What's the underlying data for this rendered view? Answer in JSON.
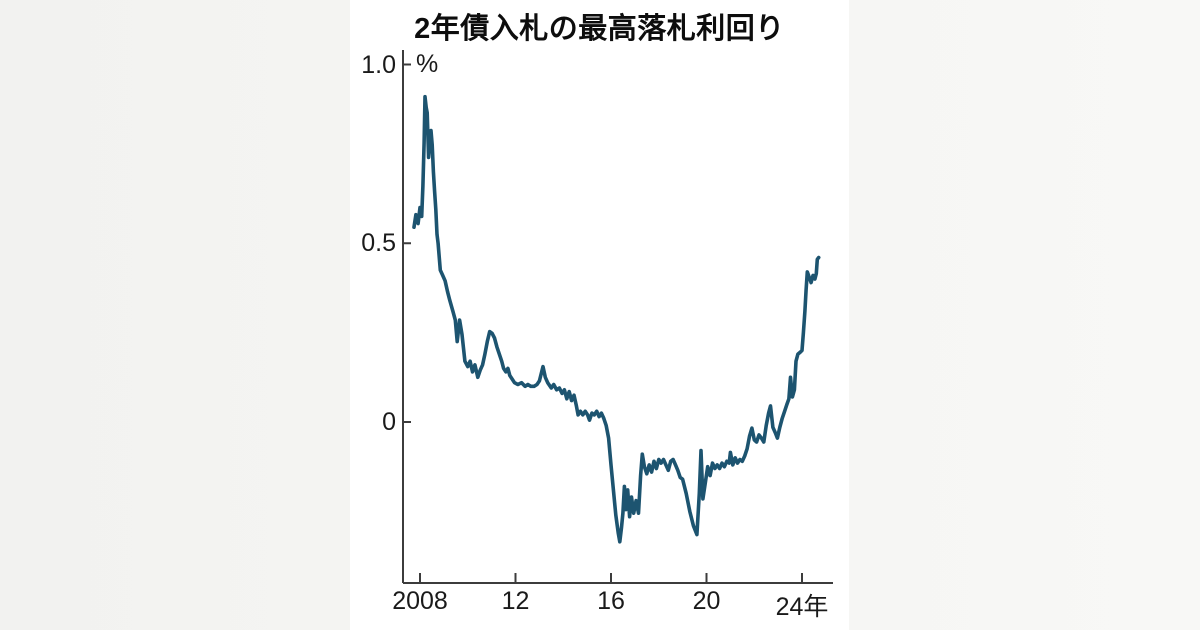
{
  "page": {
    "background_color": "#f4f4f2",
    "card_color": "#ffffff"
  },
  "chart_data": {
    "type": "line",
    "title": "2年債入札の最高落札利回り",
    "unit_label": "%",
    "xlabel": "",
    "ylabel": "",
    "grid": false,
    "legend": "none",
    "line_color": "#1d5470",
    "axis_color": "#3c3c3c",
    "x_axis": {
      "tick_labels": [
        "2008",
        "12",
        "16",
        "20",
        "24年"
      ],
      "tick_years": [
        2008,
        2012,
        2016,
        2020,
        2024
      ],
      "range": [
        2007.7,
        2024.75
      ]
    },
    "y_axis": {
      "tick_labels": [
        "1.0",
        "0.5",
        "0"
      ],
      "tick_values": [
        1.0,
        0.5,
        0
      ],
      "range": [
        -0.45,
        1.0
      ]
    },
    "series": [
      {
        "name": "2年債入札の最高落札利回り(%)",
        "points": [
          [
            2007.75,
            0.545
          ],
          [
            2007.83,
            0.58
          ],
          [
            2007.92,
            0.555
          ],
          [
            2008.0,
            0.6
          ],
          [
            2008.07,
            0.575
          ],
          [
            2008.12,
            0.66
          ],
          [
            2008.17,
            0.78
          ],
          [
            2008.21,
            0.91
          ],
          [
            2008.26,
            0.88
          ],
          [
            2008.3,
            0.865
          ],
          [
            2008.36,
            0.74
          ],
          [
            2008.42,
            0.79
          ],
          [
            2008.46,
            0.815
          ],
          [
            2008.51,
            0.775
          ],
          [
            2008.56,
            0.7
          ],
          [
            2008.61,
            0.645
          ],
          [
            2008.66,
            0.595
          ],
          [
            2008.71,
            0.525
          ],
          [
            2008.76,
            0.5
          ],
          [
            2008.85,
            0.425
          ],
          [
            2008.95,
            0.41
          ],
          [
            2009.05,
            0.395
          ],
          [
            2009.15,
            0.365
          ],
          [
            2009.25,
            0.34
          ],
          [
            2009.38,
            0.31
          ],
          [
            2009.48,
            0.285
          ],
          [
            2009.56,
            0.225
          ],
          [
            2009.66,
            0.285
          ],
          [
            2009.76,
            0.245
          ],
          [
            2009.88,
            0.17
          ],
          [
            2010.0,
            0.155
          ],
          [
            2010.1,
            0.17
          ],
          [
            2010.2,
            0.14
          ],
          [
            2010.3,
            0.16
          ],
          [
            2010.42,
            0.125
          ],
          [
            2010.52,
            0.145
          ],
          [
            2010.62,
            0.16
          ],
          [
            2010.72,
            0.19
          ],
          [
            2010.82,
            0.225
          ],
          [
            2010.92,
            0.253
          ],
          [
            2011.02,
            0.248
          ],
          [
            2011.12,
            0.235
          ],
          [
            2011.22,
            0.21
          ],
          [
            2011.32,
            0.19
          ],
          [
            2011.42,
            0.17
          ],
          [
            2011.5,
            0.15
          ],
          [
            2011.6,
            0.14
          ],
          [
            2011.68,
            0.15
          ],
          [
            2011.76,
            0.13
          ],
          [
            2011.86,
            0.12
          ],
          [
            2011.96,
            0.11
          ],
          [
            2012.1,
            0.105
          ],
          [
            2012.25,
            0.11
          ],
          [
            2012.4,
            0.1
          ],
          [
            2012.52,
            0.105
          ],
          [
            2012.64,
            0.1
          ],
          [
            2012.78,
            0.1
          ],
          [
            2012.9,
            0.105
          ],
          [
            2013.0,
            0.115
          ],
          [
            2013.15,
            0.155
          ],
          [
            2013.25,
            0.125
          ],
          [
            2013.35,
            0.11
          ],
          [
            2013.5,
            0.095
          ],
          [
            2013.6,
            0.105
          ],
          [
            2013.72,
            0.09
          ],
          [
            2013.84,
            0.095
          ],
          [
            2013.95,
            0.08
          ],
          [
            2014.05,
            0.09
          ],
          [
            2014.15,
            0.065
          ],
          [
            2014.25,
            0.085
          ],
          [
            2014.35,
            0.06
          ],
          [
            2014.45,
            0.075
          ],
          [
            2014.55,
            0.045
          ],
          [
            2014.62,
            0.02
          ],
          [
            2014.72,
            0.03
          ],
          [
            2014.82,
            0.02
          ],
          [
            2014.92,
            0.03
          ],
          [
            2015.02,
            0.02
          ],
          [
            2015.1,
            0.005
          ],
          [
            2015.2,
            0.025
          ],
          [
            2015.3,
            0.02
          ],
          [
            2015.4,
            0.03
          ],
          [
            2015.5,
            0.015
          ],
          [
            2015.6,
            0.025
          ],
          [
            2015.7,
            0.01
          ],
          [
            2015.8,
            -0.01
          ],
          [
            2015.9,
            -0.045
          ],
          [
            2016.0,
            -0.12
          ],
          [
            2016.1,
            -0.19
          ],
          [
            2016.2,
            -0.26
          ],
          [
            2016.3,
            -0.31
          ],
          [
            2016.37,
            -0.335
          ],
          [
            2016.44,
            -0.295
          ],
          [
            2016.5,
            -0.255
          ],
          [
            2016.56,
            -0.18
          ],
          [
            2016.63,
            -0.245
          ],
          [
            2016.7,
            -0.19
          ],
          [
            2016.78,
            -0.265
          ],
          [
            2016.86,
            -0.21
          ],
          [
            2016.95,
            -0.255
          ],
          [
            2017.05,
            -0.22
          ],
          [
            2017.15,
            -0.255
          ],
          [
            2017.24,
            -0.15
          ],
          [
            2017.31,
            -0.09
          ],
          [
            2017.4,
            -0.125
          ],
          [
            2017.5,
            -0.145
          ],
          [
            2017.6,
            -0.12
          ],
          [
            2017.7,
            -0.14
          ],
          [
            2017.8,
            -0.11
          ],
          [
            2017.9,
            -0.13
          ],
          [
            2018.0,
            -0.105
          ],
          [
            2018.1,
            -0.115
          ],
          [
            2018.2,
            -0.105
          ],
          [
            2018.3,
            -0.12
          ],
          [
            2018.4,
            -0.135
          ],
          [
            2018.5,
            -0.11
          ],
          [
            2018.6,
            -0.105
          ],
          [
            2018.7,
            -0.12
          ],
          [
            2018.8,
            -0.135
          ],
          [
            2018.9,
            -0.155
          ],
          [
            2019.0,
            -0.16
          ],
          [
            2019.15,
            -0.2
          ],
          [
            2019.3,
            -0.25
          ],
          [
            2019.45,
            -0.29
          ],
          [
            2019.6,
            -0.315
          ],
          [
            2019.7,
            -0.2
          ],
          [
            2019.77,
            -0.08
          ],
          [
            2019.85,
            -0.215
          ],
          [
            2019.95,
            -0.17
          ],
          [
            2020.05,
            -0.125
          ],
          [
            2020.15,
            -0.15
          ],
          [
            2020.25,
            -0.115
          ],
          [
            2020.35,
            -0.13
          ],
          [
            2020.45,
            -0.12
          ],
          [
            2020.55,
            -0.13
          ],
          [
            2020.65,
            -0.115
          ],
          [
            2020.75,
            -0.125
          ],
          [
            2020.85,
            -0.11
          ],
          [
            2020.95,
            -0.115
          ],
          [
            2021.0,
            -0.085
          ],
          [
            2021.1,
            -0.12
          ],
          [
            2021.2,
            -0.1
          ],
          [
            2021.3,
            -0.115
          ],
          [
            2021.4,
            -0.105
          ],
          [
            2021.5,
            -0.11
          ],
          [
            2021.6,
            -0.095
          ],
          [
            2021.7,
            -0.075
          ],
          [
            2021.8,
            -0.04
          ],
          [
            2021.9,
            -0.017
          ],
          [
            2022.0,
            -0.05
          ],
          [
            2022.1,
            -0.056
          ],
          [
            2022.2,
            -0.036
          ],
          [
            2022.3,
            -0.045
          ],
          [
            2022.4,
            -0.056
          ],
          [
            2022.5,
            -0.01
          ],
          [
            2022.6,
            0.025
          ],
          [
            2022.68,
            0.045
          ],
          [
            2022.78,
            -0.015
          ],
          [
            2022.88,
            -0.03
          ],
          [
            2022.97,
            -0.045
          ],
          [
            2023.07,
            -0.015
          ],
          [
            2023.17,
            0.01
          ],
          [
            2023.27,
            0.03
          ],
          [
            2023.37,
            0.05
          ],
          [
            2023.45,
            0.065
          ],
          [
            2023.52,
            0.125
          ],
          [
            2023.6,
            0.07
          ],
          [
            2023.68,
            0.09
          ],
          [
            2023.75,
            0.17
          ],
          [
            2023.83,
            0.19
          ],
          [
            2023.92,
            0.195
          ],
          [
            2024.0,
            0.2
          ],
          [
            2024.06,
            0.25
          ],
          [
            2024.12,
            0.31
          ],
          [
            2024.17,
            0.37
          ],
          [
            2024.22,
            0.42
          ],
          [
            2024.3,
            0.405
          ],
          [
            2024.38,
            0.39
          ],
          [
            2024.46,
            0.41
          ],
          [
            2024.54,
            0.4
          ],
          [
            2024.6,
            0.415
          ],
          [
            2024.64,
            0.455
          ],
          [
            2024.7,
            0.46
          ]
        ]
      }
    ]
  }
}
